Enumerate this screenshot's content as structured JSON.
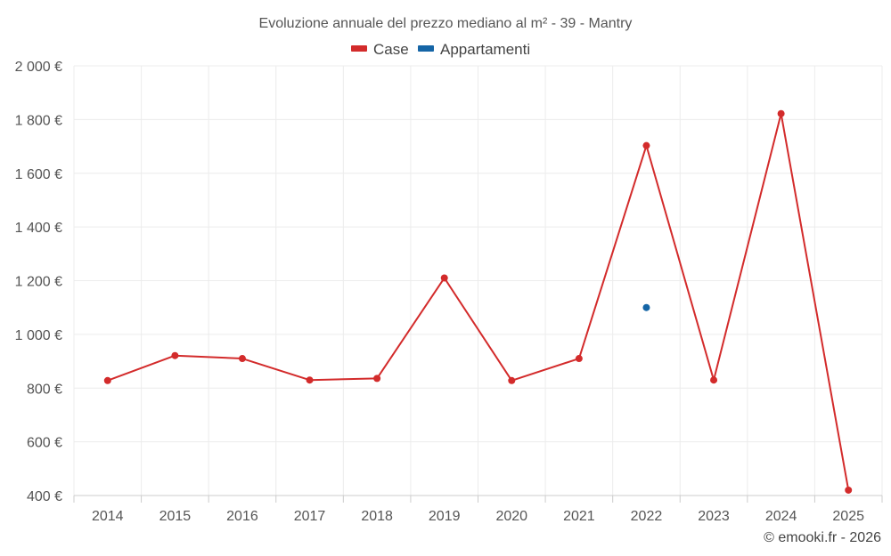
{
  "chart_data": {
    "type": "line",
    "title": "Evoluzione annuale del prezzo mediano al m² - 39 - Mantry",
    "categories": [
      "2014",
      "2015",
      "2016",
      "2017",
      "2018",
      "2019",
      "2020",
      "2021",
      "2022",
      "2023",
      "2024",
      "2025"
    ],
    "series": [
      {
        "name": "Case",
        "color": "#d32b2b",
        "values": [
          828,
          921,
          910,
          830,
          836,
          1210,
          828,
          910,
          1703,
          830,
          1822,
          420
        ]
      },
      {
        "name": "Appartamenti",
        "color": "#1565a6",
        "values": [
          null,
          null,
          null,
          null,
          null,
          null,
          null,
          null,
          1100,
          null,
          null,
          null
        ]
      }
    ],
    "ylim": [
      400,
      2000
    ],
    "yticks": [
      400,
      600,
      800,
      1000,
      1200,
      1400,
      1600,
      1800,
      2000
    ],
    "ytick_labels": [
      "400 €",
      "600 €",
      "800 €",
      "1 000 €",
      "1 200 €",
      "1 400 €",
      "1 600 €",
      "1 800 €",
      "2 000 €"
    ],
    "xlabel": "",
    "ylabel": "",
    "grid": true,
    "legend_position": "top-center",
    "credit": "© emooki.fr - 2026"
  }
}
